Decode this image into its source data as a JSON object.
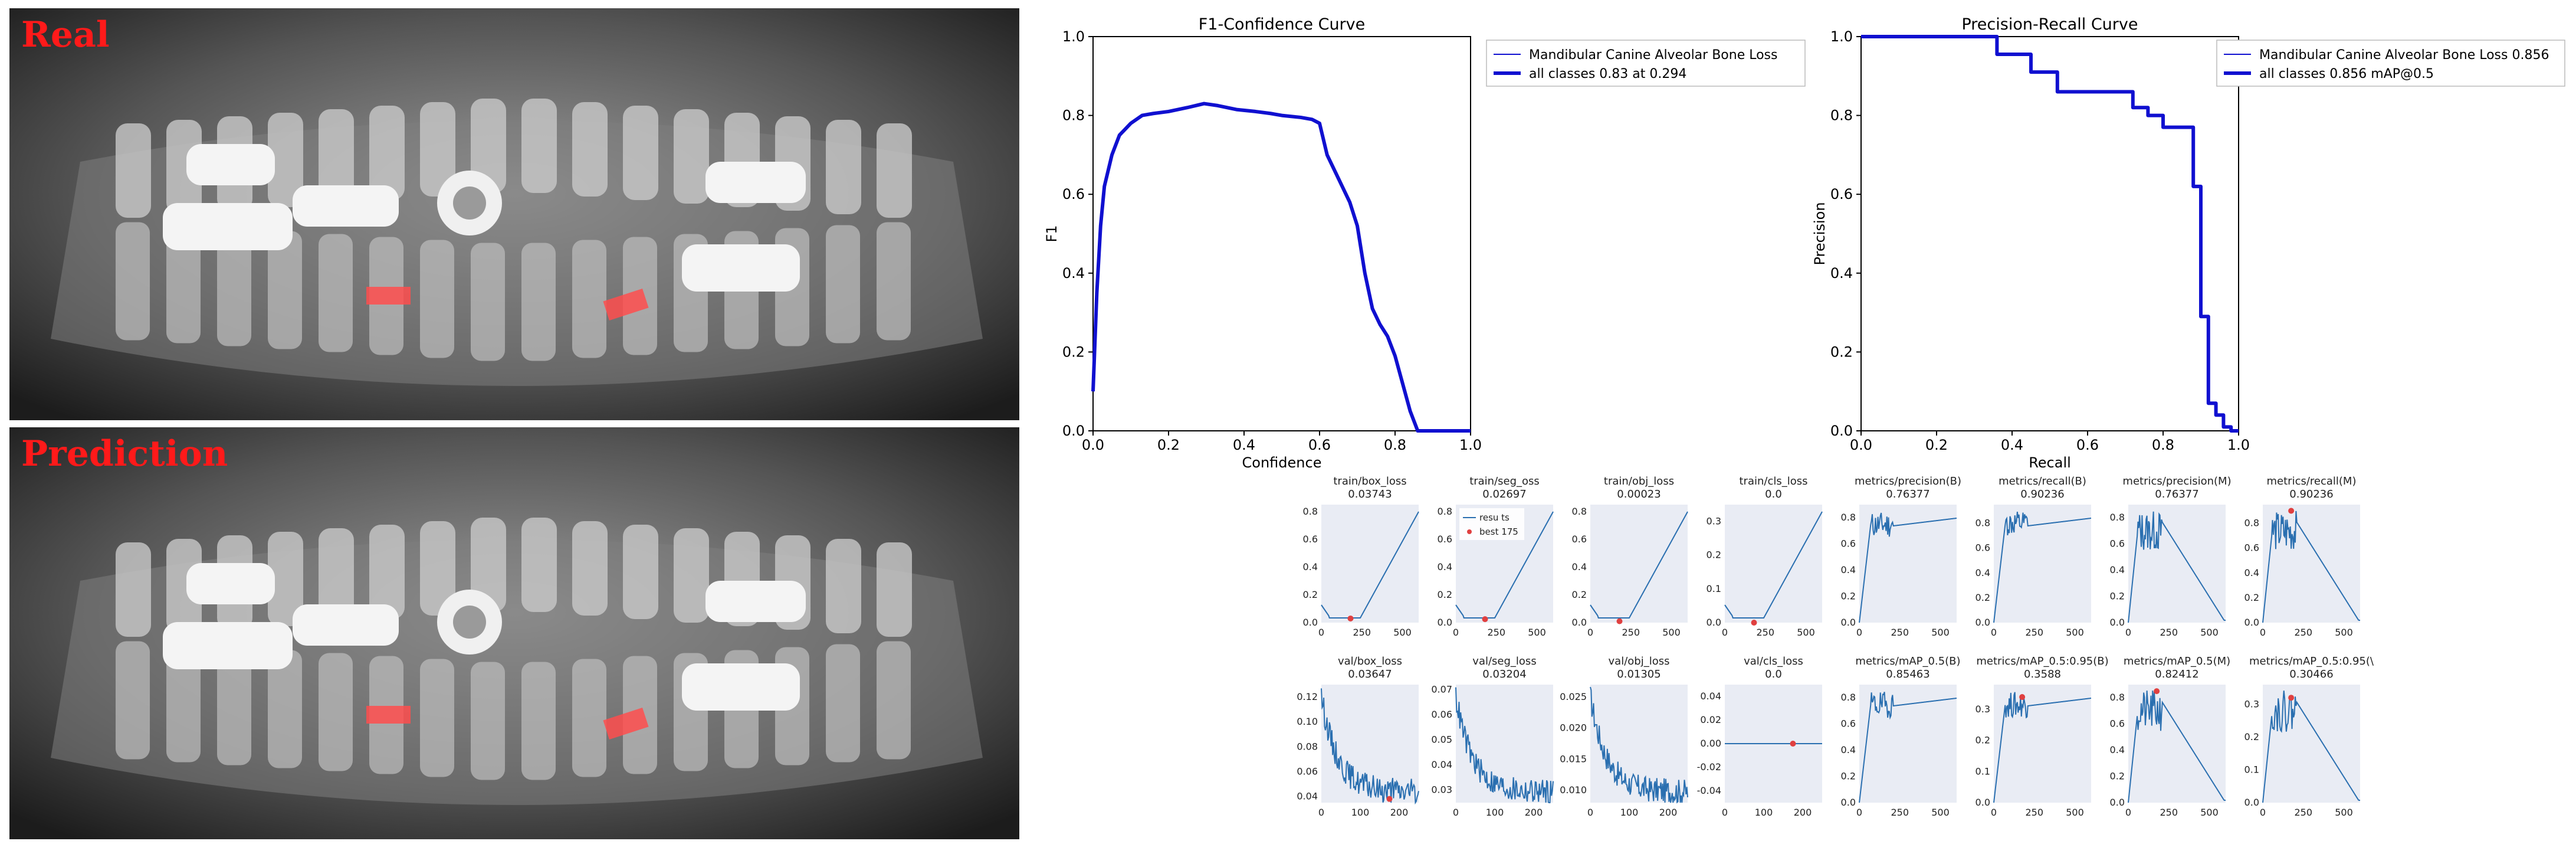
{
  "panels": {
    "real_label": "Real",
    "prediction_label": "Prediction"
  },
  "colors": {
    "curve": "#1010d0",
    "metric_line": "#2a6fb0",
    "best_marker": "#e04040",
    "lesion": "#ff4d4d",
    "subplot_bg": "#e9ecf4"
  },
  "chart_data": [
    {
      "id": "f1",
      "type": "line",
      "title": "F1-Confidence Curve",
      "xlabel": "Confidence",
      "ylabel": "F1",
      "xlim": [
        0,
        1
      ],
      "ylim": [
        0,
        1
      ],
      "xticks": [
        "0.0",
        "0.2",
        "0.4",
        "0.6",
        "0.8",
        "1.0"
      ],
      "yticks": [
        "0.0",
        "0.2",
        "0.4",
        "0.6",
        "0.8",
        "1.0"
      ],
      "legend": [
        "Mandibular Canine Alveolar Bone Loss",
        "all classes 0.83 at 0.294"
      ],
      "series": [
        {
          "name": "Mandibular Canine Alveolar Bone Loss",
          "x": [
            0.0,
            0.01,
            0.02,
            0.03,
            0.05,
            0.07,
            0.1,
            0.13,
            0.16,
            0.2,
            0.25,
            0.294,
            0.33,
            0.38,
            0.43,
            0.47,
            0.5,
            0.55,
            0.58,
            0.6,
            0.62,
            0.65,
            0.68,
            0.7,
            0.72,
            0.74,
            0.76,
            0.78,
            0.8,
            0.82,
            0.84,
            0.86,
            0.9,
            1.0
          ],
          "y": [
            0.1,
            0.35,
            0.52,
            0.62,
            0.7,
            0.75,
            0.78,
            0.8,
            0.805,
            0.81,
            0.82,
            0.83,
            0.825,
            0.815,
            0.81,
            0.805,
            0.8,
            0.795,
            0.79,
            0.78,
            0.7,
            0.64,
            0.58,
            0.52,
            0.4,
            0.31,
            0.27,
            0.24,
            0.19,
            0.12,
            0.05,
            0.0,
            0.0,
            0.0
          ]
        }
      ]
    },
    {
      "id": "pr",
      "type": "line",
      "title": "Precision-Recall Curve",
      "xlabel": "Recall",
      "ylabel": "Precision",
      "xlim": [
        0,
        1
      ],
      "ylim": [
        0,
        1
      ],
      "xticks": [
        "0.0",
        "0.2",
        "0.4",
        "0.6",
        "0.8",
        "1.0"
      ],
      "yticks": [
        "0.0",
        "0.2",
        "0.4",
        "0.6",
        "0.8",
        "1.0"
      ],
      "legend": [
        "Mandibular Canine Alveolar Bone Loss  0.856",
        "all classes 0.856 mAP@0.5"
      ],
      "series": [
        {
          "name": "Mandibular Canine Alveolar Bone Loss",
          "x": [
            0.0,
            0.36,
            0.36,
            0.45,
            0.45,
            0.52,
            0.52,
            0.72,
            0.72,
            0.76,
            0.76,
            0.8,
            0.8,
            0.88,
            0.88,
            0.9,
            0.9,
            0.92,
            0.92,
            0.94,
            0.94,
            0.96,
            0.96,
            0.98,
            0.98,
            1.0
          ],
          "y": [
            1.0,
            1.0,
            0.955,
            0.955,
            0.91,
            0.91,
            0.86,
            0.86,
            0.82,
            0.82,
            0.8,
            0.8,
            0.77,
            0.77,
            0.62,
            0.62,
            0.29,
            0.29,
            0.07,
            0.07,
            0.04,
            0.04,
            0.01,
            0.01,
            0.0,
            0.0
          ]
        }
      ]
    },
    {
      "id": "metrics",
      "type": "line",
      "subplots": [
        {
          "title": "train/box_loss",
          "value": "0.03743",
          "xticks": [
            "0",
            "250",
            "500"
          ],
          "yticks": [
            "0.0",
            "0.2",
            "0.4",
            "0.6",
            "0.8"
          ],
          "xmax": 600,
          "ylim": [
            0,
            0.85
          ],
          "pattern": "loss_rise",
          "best": [
            180,
            0.03
          ]
        },
        {
          "title": "train/seg_oss",
          "value": "0.02697",
          "xticks": [
            "0",
            "250",
            "500"
          ],
          "yticks": [
            "0.0",
            "0.2",
            "0.4",
            "0.6",
            "0.8"
          ],
          "xmax": 600,
          "ylim": [
            0,
            0.85
          ],
          "pattern": "loss_rise",
          "best": [
            180,
            0.025
          ],
          "legend": [
            "resu ts",
            "best 175"
          ]
        },
        {
          "title": "train/obj_loss",
          "value": "0.00023",
          "xticks": [
            "0",
            "250",
            "500"
          ],
          "yticks": [
            "0.0",
            "0.2",
            "0.4",
            "0.6",
            "0.8"
          ],
          "xmax": 600,
          "ylim": [
            0,
            0.85
          ],
          "pattern": "loss_rise",
          "best": [
            180,
            0.01
          ]
        },
        {
          "title": "train/cls_loss",
          "value": "0.0",
          "xticks": [
            "0",
            "250",
            "500"
          ],
          "yticks": [
            "0.0",
            "0.1",
            "0.2",
            "0.3"
          ],
          "xmax": 600,
          "ylim": [
            0,
            0.35
          ],
          "pattern": "loss_rise",
          "best": [
            180,
            0.0
          ]
        },
        {
          "title": "metrics/precision(B)",
          "value": "0.76377",
          "xticks": [
            "0",
            "250",
            "500"
          ],
          "yticks": [
            "0.0",
            "0.2",
            "0.4",
            "0.6",
            "0.8"
          ],
          "xmax": 600,
          "ylim": [
            0,
            0.9
          ],
          "pattern": "metric_plateau",
          "best": null
        },
        {
          "title": "metrics/recall(B)",
          "value": "0.90236",
          "xticks": [
            "0",
            "250",
            "500"
          ],
          "yticks": [
            "0.0",
            "0.2",
            "0.4",
            "0.6",
            "0.8"
          ],
          "xmax": 600,
          "ylim": [
            0,
            0.95
          ],
          "pattern": "metric_plateau",
          "best": null
        },
        {
          "title": "metrics/precision(M)",
          "value": "0.76377",
          "xticks": [
            "0",
            "250",
            "500"
          ],
          "yticks": [
            "0.0",
            "0.2",
            "0.4",
            "0.6",
            "0.8"
          ],
          "xmax": 600,
          "ylim": [
            0,
            0.9
          ],
          "pattern": "metric_drop",
          "best": null
        },
        {
          "title": "metrics/recall(M)",
          "value": "0.90236",
          "xticks": [
            "0",
            "250",
            "500"
          ],
          "yticks": [
            "0.0",
            "0.2",
            "0.4",
            "0.6",
            "0.8"
          ],
          "xmax": 600,
          "ylim": [
            0,
            0.95
          ],
          "pattern": "metric_drop",
          "best": [
            175,
            0.9
          ]
        },
        {
          "title": "val/box_loss",
          "value": "0.03647",
          "xticks": [
            "0",
            "100",
            "200"
          ],
          "yticks": [
            "0.04",
            "0.06",
            "0.08",
            "0.10",
            "0.12"
          ],
          "xmax": 250,
          "ylim": [
            0.035,
            0.13
          ],
          "pattern": "val_loss",
          "best": [
            175,
            0.038
          ]
        },
        {
          "title": "val/seg_loss",
          "value": "0.03204",
          "xticks": [
            "0",
            "100",
            "200"
          ],
          "yticks": [
            "0.03",
            "0.04",
            "0.05",
            "0.06",
            "0.07"
          ],
          "xmax": 250,
          "ylim": [
            0.025,
            0.072
          ],
          "pattern": "val_loss",
          "best": null
        },
        {
          "title": "val/obj_loss",
          "value": "0.01305",
          "xticks": [
            "0",
            "100",
            "200"
          ],
          "yticks": [
            "0.010",
            "0.015",
            "0.020",
            "0.025"
          ],
          "xmax": 250,
          "ylim": [
            0.008,
            0.027
          ],
          "pattern": "val_loss",
          "best": null
        },
        {
          "title": "val/cls_loss",
          "value": "0.0",
          "xticks": [
            "0",
            "100",
            "200"
          ],
          "yticks": [
            "-0.04",
            "-0.02",
            "0.00",
            "0.02",
            "0.04"
          ],
          "xmax": 250,
          "ylim": [
            -0.05,
            0.05
          ],
          "pattern": "flat",
          "best": [
            175,
            0.0
          ]
        },
        {
          "title": "metrics/mAP_0.5(B)",
          "value": "0.85463",
          "xticks": [
            "0",
            "250",
            "500"
          ],
          "yticks": [
            "0.0",
            "0.2",
            "0.4",
            "0.6",
            "0.8"
          ],
          "xmax": 600,
          "ylim": [
            0,
            0.9
          ],
          "pattern": "metric_plateau",
          "best": null
        },
        {
          "title": "metrics/mAP_0.5:0.95(B)",
          "value": "0.3588",
          "xticks": [
            "0",
            "250",
            "500"
          ],
          "yticks": [
            "0.0",
            "0.1",
            "0.2",
            "0.3"
          ],
          "xmax": 600,
          "ylim": [
            0,
            0.38
          ],
          "pattern": "metric_plateau",
          "best": [
            175,
            0.34
          ]
        },
        {
          "title": "metrics/mAP_0.5(M)",
          "value": "0.82412",
          "xticks": [
            "0",
            "250",
            "500"
          ],
          "yticks": [
            "0.0",
            "0.2",
            "0.4",
            "0.6",
            "0.8"
          ],
          "xmax": 600,
          "ylim": [
            0,
            0.9
          ],
          "pattern": "metric_drop",
          "best": [
            175,
            0.85
          ]
        },
        {
          "title": "metrics/mAP_0.5:0.95(\\",
          "value": "0.30466",
          "xticks": [
            "0",
            "250",
            "500"
          ],
          "yticks": [
            "0.0",
            "0.1",
            "0.2",
            "0.3"
          ],
          "xmax": 600,
          "ylim": [
            0,
            0.36
          ],
          "pattern": "metric_drop",
          "best": [
            175,
            0.32
          ]
        }
      ]
    }
  ]
}
